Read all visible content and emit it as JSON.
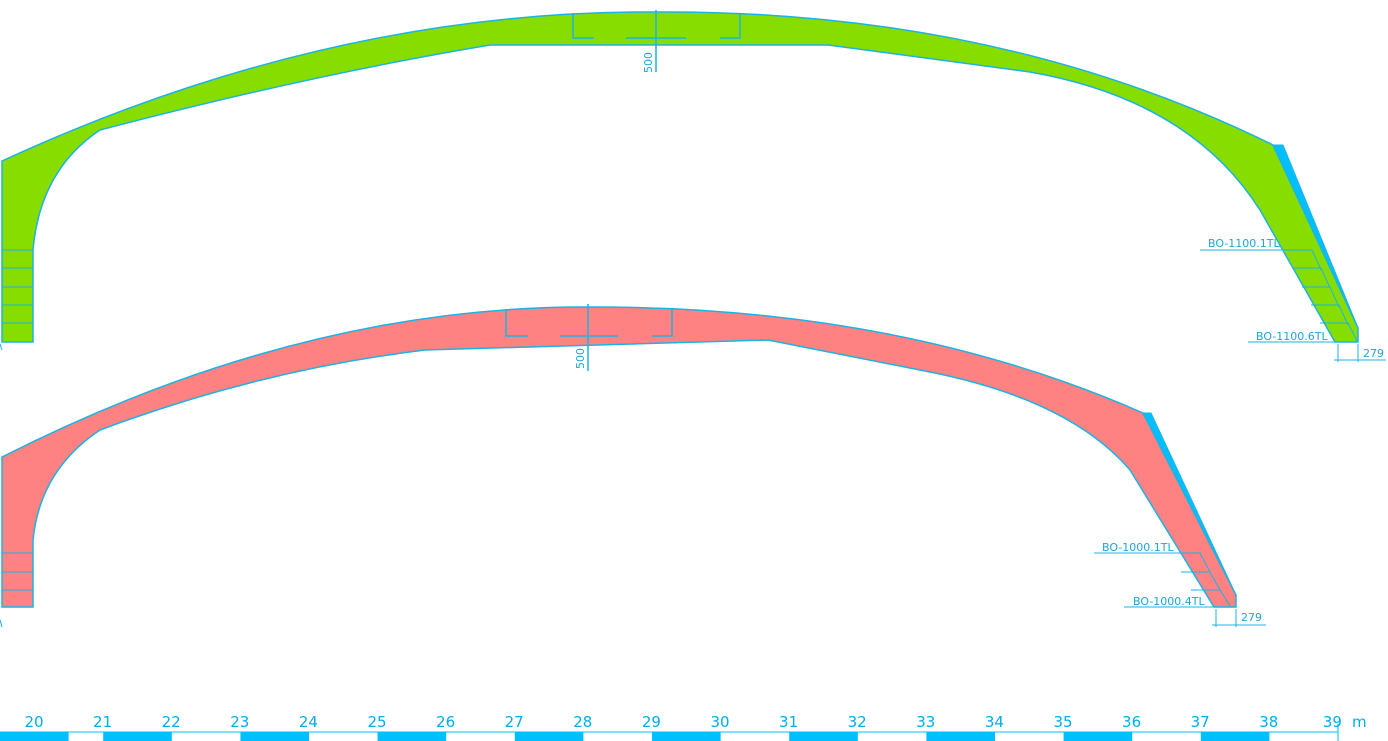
{
  "colors": {
    "outline": "#1ab3e6",
    "green_fill": "#88dd00",
    "red_fill": "#ff8282",
    "scale_bar": "#00bfff",
    "label_text": "#1aa6d9"
  },
  "top_arch": {
    "center_dimension": "500",
    "label_first": "BO-1100.1TL",
    "label_last": "BO-1100.6TL",
    "end_dimension": "279"
  },
  "bottom_arch": {
    "center_dimension": "500",
    "label_first": "BO-1000.1TL",
    "label_last": "BO-1000.4TL",
    "end_dimension": "279"
  },
  "scale": {
    "numbers": [
      "20",
      "21",
      "22",
      "23",
      "24",
      "25",
      "26",
      "27",
      "28",
      "29",
      "30",
      "31",
      "32",
      "33",
      "34",
      "35",
      "36",
      "37",
      "38",
      "39"
    ],
    "unit": "m"
  }
}
